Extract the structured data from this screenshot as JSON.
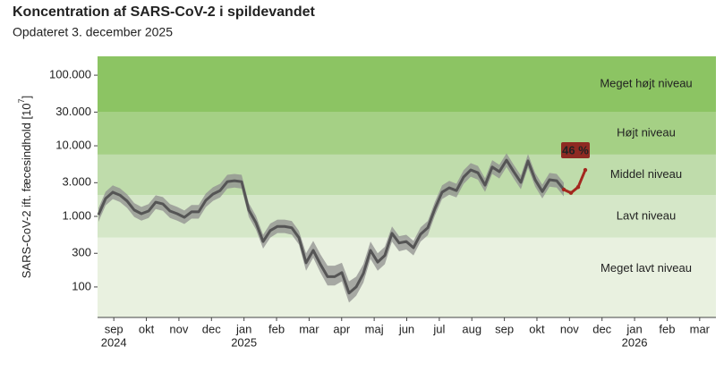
{
  "chart_data": {
    "type": "line",
    "title": "Koncentration af SARS-CoV-2 i spildevandet",
    "subtitle": "Opdateret 3. december 2025",
    "ylabel": [
      "SARS-CoV-2 ift. fæcesindhold [10",
      "7",
      "]"
    ],
    "log_scale": true,
    "ylim": [
      37,
      185000
    ],
    "yticks": [
      {
        "value": 100,
        "label": "100"
      },
      {
        "value": 300,
        "label": "300"
      },
      {
        "value": 1000,
        "label": "1.000"
      },
      {
        "value": 3000,
        "label": "3.000"
      },
      {
        "value": 10000,
        "label": "10.000"
      },
      {
        "value": 30000,
        "label": "30.000"
      },
      {
        "value": 100000,
        "label": "100.000"
      }
    ],
    "x_months": [
      {
        "label": "sep",
        "year": "2024"
      },
      {
        "label": "okt"
      },
      {
        "label": "nov"
      },
      {
        "label": "dec"
      },
      {
        "label": "jan",
        "year": "2025"
      },
      {
        "label": "feb"
      },
      {
        "label": "mar"
      },
      {
        "label": "apr"
      },
      {
        "label": "maj"
      },
      {
        "label": "jun"
      },
      {
        "label": "jul"
      },
      {
        "label": "aug"
      },
      {
        "label": "sep"
      },
      {
        "label": "okt"
      },
      {
        "label": "nov"
      },
      {
        "label": "dec"
      },
      {
        "label": "jan",
        "year": "2026"
      },
      {
        "label": "feb"
      },
      {
        "label": "mar"
      }
    ],
    "band_limits": [
      500,
      2000,
      7500,
      30000
    ],
    "bands": [
      {
        "label": "Meget lavt niveau",
        "color": "#e9f1e0"
      },
      {
        "label": "Lavt niveau",
        "color": "#d5e7c8"
      },
      {
        "label": "Middel niveau",
        "color": "#bfdcab"
      },
      {
        "label": "Højt niveau",
        "color": "#a5d085"
      },
      {
        "label": "Meget højt niveau",
        "color": "#8cc463"
      }
    ],
    "categories": [
      null,
      null,
      null,
      null,
      null,
      null,
      null,
      null,
      null,
      null,
      null,
      null,
      null,
      null,
      null,
      null,
      null,
      null,
      null,
      null,
      null,
      null,
      null,
      null,
      null,
      null,
      null,
      null,
      null,
      null,
      null,
      null,
      null,
      null,
      null,
      null,
      null,
      null,
      null,
      null,
      null,
      null,
      null,
      null,
      null,
      null,
      null,
      null,
      null,
      null,
      null,
      null,
      null,
      null,
      null,
      null,
      null,
      null,
      null,
      null,
      null,
      null,
      null,
      null,
      null,
      null,
      null,
      null,
      null
    ],
    "series": [
      {
        "color": "#555555",
        "band_color": "#8f8f8f",
        "values": [
          1050,
          1790,
          2200,
          2000,
          1650,
          1230,
          1090,
          1190,
          1590,
          1500,
          1190,
          1090,
          970,
          1160,
          1160,
          1690,
          2070,
          2320,
          3100,
          3200,
          3100,
          1230,
          815,
          440,
          630,
          720,
          720,
          690,
          500,
          220,
          330,
          210,
          140,
          140,
          160,
          82,
          100,
          155,
          330,
          225,
          280,
          575,
          420,
          440,
          360,
          560,
          690,
          1290,
          2200,
          2540,
          2320,
          3600,
          4550,
          4150,
          2770,
          5000,
          4300,
          6260,
          4300,
          3030,
          6100,
          3300,
          2250,
          3300,
          3200,
          2400,
          null,
          null,
          null
        ],
        "lower": [
          840,
          1430,
          1760,
          1600,
          1320,
          980,
          870,
          950,
          1270,
          1200,
          950,
          870,
          780,
          930,
          930,
          1350,
          1660,
          1860,
          2480,
          2560,
          2480,
          980,
          650,
          350,
          500,
          580,
          580,
          550,
          400,
          170,
          260,
          160,
          105,
          105,
          120,
          60,
          75,
          115,
          250,
          170,
          210,
          440,
          320,
          340,
          280,
          440,
          540,
          1030,
          1760,
          2030,
          1860,
          2880,
          3640,
          3320,
          2220,
          4000,
          3440,
          5000,
          3440,
          2420,
          4880,
          2640,
          1800,
          2640,
          2560,
          1920,
          null,
          null,
          null
        ],
        "upper": [
          1310,
          2240,
          2750,
          2500,
          2060,
          1540,
          1360,
          1490,
          1990,
          1880,
          1490,
          1360,
          1210,
          1450,
          1450,
          2110,
          2590,
          2900,
          3880,
          4000,
          3880,
          1540,
          1020,
          550,
          790,
          900,
          900,
          860,
          625,
          300,
          450,
          290,
          200,
          200,
          220,
          120,
          140,
          210,
          440,
          300,
          370,
          720,
          525,
          550,
          450,
          700,
          860,
          1610,
          2750,
          3180,
          2900,
          4500,
          5690,
          5190,
          3460,
          6250,
          5380,
          7830,
          5380,
          3790,
          7630,
          4130,
          2810,
          4130,
          4000,
          3000,
          null,
          null,
          null
        ]
      },
      {
        "color": "#a3281f",
        "values": [
          null,
          null,
          null,
          null,
          null,
          null,
          null,
          null,
          null,
          null,
          null,
          null,
          null,
          null,
          null,
          null,
          null,
          null,
          null,
          null,
          null,
          null,
          null,
          null,
          null,
          null,
          null,
          null,
          null,
          null,
          null,
          null,
          null,
          null,
          null,
          null,
          null,
          null,
          null,
          null,
          null,
          null,
          null,
          null,
          null,
          null,
          null,
          null,
          null,
          null,
          null,
          null,
          null,
          null,
          null,
          null,
          null,
          null,
          null,
          null,
          null,
          null,
          null,
          null,
          null,
          2400,
          2150,
          2600,
          4550
        ]
      }
    ],
    "annotation": "46 %",
    "annotation_color": "#8e2a22"
  }
}
